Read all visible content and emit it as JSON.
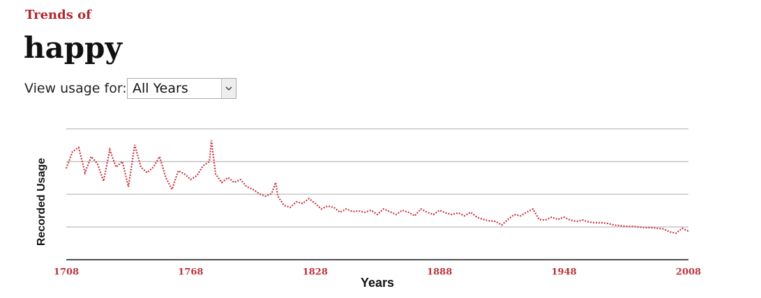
{
  "header": {
    "kicker": "Trends of",
    "word": "happy"
  },
  "control": {
    "label": "View usage for:",
    "selected": "All Years"
  },
  "chart_data": {
    "type": "line",
    "x_label": "Years",
    "y_label": "Recorded Usage",
    "x": [
      1708,
      1711,
      1714,
      1717,
      1720,
      1723,
      1726,
      1729,
      1732,
      1735,
      1738,
      1741,
      1744,
      1747,
      1750,
      1753,
      1756,
      1759,
      1762,
      1765,
      1768,
      1771,
      1774,
      1777,
      1778,
      1780,
      1783,
      1786,
      1789,
      1792,
      1795,
      1798,
      1801,
      1804,
      1807,
      1809,
      1810,
      1813,
      1816,
      1819,
      1822,
      1825,
      1828,
      1831,
      1834,
      1837,
      1840,
      1843,
      1846,
      1849,
      1852,
      1855,
      1858,
      1861,
      1864,
      1867,
      1870,
      1873,
      1876,
      1879,
      1882,
      1885,
      1888,
      1891,
      1894,
      1897,
      1900,
      1903,
      1906,
      1909,
      1912,
      1915,
      1918,
      1921,
      1924,
      1927,
      1930,
      1933,
      1936,
      1939,
      1942,
      1945,
      1948,
      1951,
      1954,
      1957,
      1960,
      1963,
      1966,
      1969,
      1972,
      1975,
      1978,
      1981,
      1984,
      1987,
      1990,
      1993,
      1996,
      1999,
      2002,
      2005,
      2008
    ],
    "series": [
      {
        "name": "happy",
        "color": "#c8373f",
        "values": [
          2.79,
          3.3,
          3.43,
          2.66,
          3.15,
          2.94,
          2.4,
          3.36,
          2.83,
          3.0,
          2.23,
          3.51,
          2.83,
          2.66,
          2.83,
          3.15,
          2.51,
          2.15,
          2.72,
          2.62,
          2.45,
          2.57,
          2.87,
          3.0,
          3.64,
          2.62,
          2.36,
          2.51,
          2.36,
          2.45,
          2.23,
          2.15,
          2.02,
          1.94,
          2.02,
          2.36,
          1.94,
          1.66,
          1.6,
          1.77,
          1.72,
          1.87,
          1.72,
          1.55,
          1.64,
          1.6,
          1.45,
          1.55,
          1.47,
          1.49,
          1.45,
          1.51,
          1.38,
          1.55,
          1.47,
          1.38,
          1.51,
          1.45,
          1.34,
          1.55,
          1.45,
          1.38,
          1.51,
          1.43,
          1.38,
          1.43,
          1.34,
          1.45,
          1.3,
          1.23,
          1.19,
          1.17,
          1.06,
          1.23,
          1.38,
          1.34,
          1.45,
          1.55,
          1.23,
          1.21,
          1.3,
          1.23,
          1.3,
          1.21,
          1.17,
          1.21,
          1.15,
          1.13,
          1.13,
          1.11,
          1.06,
          1.04,
          1.02,
          1.02,
          1.0,
          0.98,
          0.98,
          0.96,
          0.94,
          0.85,
          0.81,
          0.96,
          0.87
        ]
      }
    ],
    "xlim": [
      1708,
      2008
    ],
    "xticks": [
      1708,
      1768,
      1828,
      1888,
      1948,
      2008
    ],
    "ylim": [
      0,
      4
    ],
    "yticks": [
      0,
      1,
      2,
      3,
      4
    ],
    "grid": true
  }
}
